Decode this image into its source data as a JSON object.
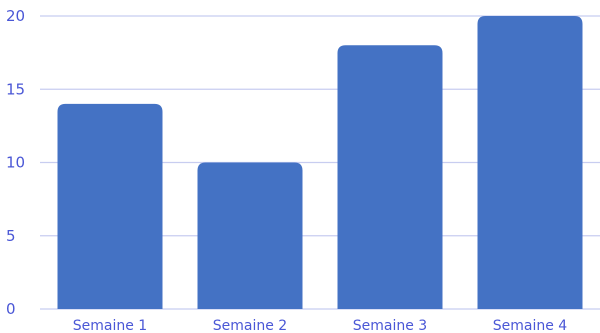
{
  "chart_data": {
    "type": "bar",
    "title": "",
    "xlabel": "",
    "ylabel": "",
    "categories": [
      "Semaine 1",
      "Semaine 2",
      "Semaine 3",
      "Semaine 4"
    ],
    "values": [
      14,
      10,
      18,
      20
    ],
    "ylim": [
      0,
      20
    ],
    "yticks": [
      0,
      5,
      10,
      15,
      20
    ],
    "grid": true,
    "legend": "none",
    "colors": {
      "bar": "#4472c4",
      "grid": "#c8cdf0",
      "text": "#4a57d6"
    }
  }
}
